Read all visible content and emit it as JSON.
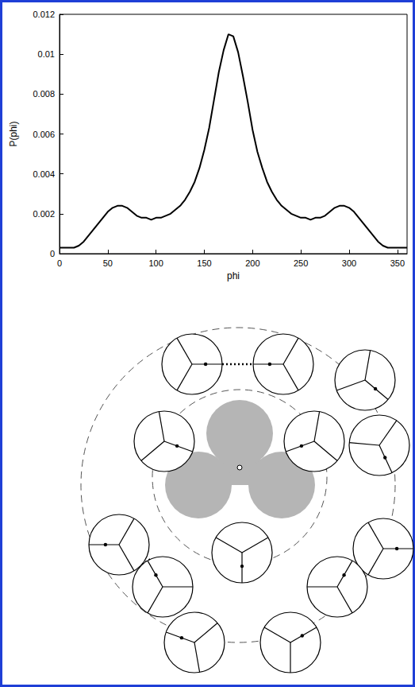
{
  "chart_data": {
    "type": "line",
    "x_label": "phi",
    "y_label": "P(phi)",
    "color": "#000000",
    "grid": false,
    "x": [
      0,
      5,
      10,
      15,
      20,
      25,
      30,
      35,
      40,
      45,
      50,
      55,
      60,
      65,
      70,
      75,
      80,
      85,
      90,
      95,
      100,
      105,
      110,
      115,
      120,
      125,
      130,
      135,
      140,
      145,
      150,
      155,
      160,
      165,
      170,
      175,
      180,
      185,
      190,
      195,
      200,
      205,
      210,
      215,
      220,
      225,
      230,
      235,
      240,
      245,
      250,
      255,
      260,
      265,
      270,
      275,
      280,
      285,
      290,
      295,
      300,
      305,
      310,
      315,
      320,
      325,
      330,
      335,
      340,
      345,
      350,
      355,
      360
    ],
    "values": [
      0.0003,
      0.0003,
      0.0003,
      0.0003,
      0.0004,
      0.0006,
      0.0009,
      0.0012,
      0.0015,
      0.0018,
      0.0021,
      0.0023,
      0.0024,
      0.0024,
      0.0023,
      0.0021,
      0.0019,
      0.0018,
      0.0018,
      0.0017,
      0.0018,
      0.0018,
      0.0019,
      0.002,
      0.0022,
      0.0024,
      0.0027,
      0.0031,
      0.0036,
      0.0043,
      0.0052,
      0.0063,
      0.0077,
      0.0091,
      0.0102,
      0.011,
      0.0109,
      0.0101,
      0.0089,
      0.0076,
      0.0062,
      0.0051,
      0.0043,
      0.0036,
      0.0031,
      0.0027,
      0.0024,
      0.0022,
      0.002,
      0.0019,
      0.0018,
      0.0018,
      0.0017,
      0.0018,
      0.0018,
      0.0019,
      0.0021,
      0.0023,
      0.0024,
      0.0024,
      0.0023,
      0.0021,
      0.0018,
      0.0015,
      0.0012,
      0.0009,
      0.0006,
      0.0004,
      0.0003,
      0.0003,
      0.0003,
      0.0003,
      0.0003
    ],
    "xlim": [
      0,
      360
    ],
    "xticks": [
      0,
      50,
      100,
      150,
      200,
      250,
      300,
      350
    ],
    "ylim": [
      0,
      0.012
    ],
    "yticks": [
      0,
      0.002,
      0.004,
      0.006,
      0.008,
      0.01,
      0.012
    ]
  }
}
